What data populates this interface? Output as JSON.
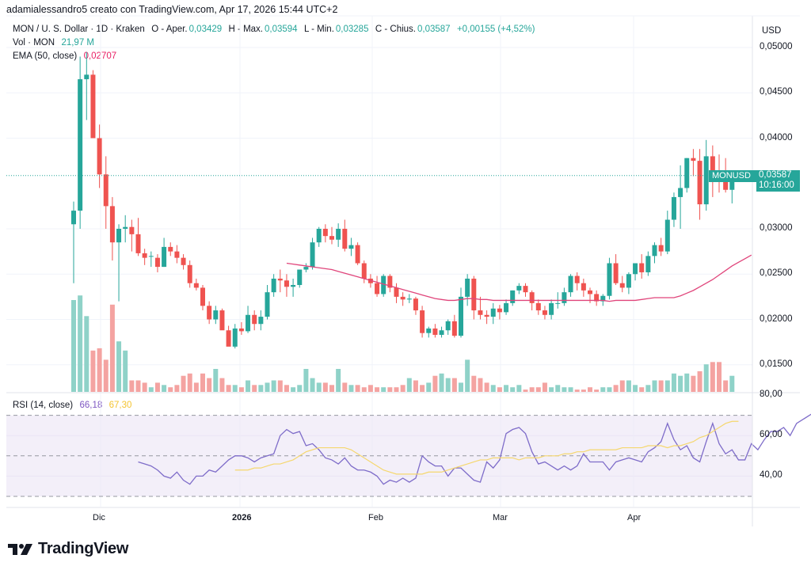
{
  "attribution": "adamialessandro5 creato con TradingView.com, Apr 17, 2026 15:44 UTC+2",
  "legend": {
    "symbol": "MON / U. S. Dollar · 1D · Kraken",
    "open_label": "O - Aper.",
    "open": "0,03429",
    "high_label": "H - Max.",
    "high": "0,03594",
    "low_label": "L - Min.",
    "low": "0,03285",
    "close_label": "C - Chius.",
    "close": "0,03587",
    "change": "+0,00155 (+4,52%)",
    "vol_label": "Vol · MON",
    "vol_value": "21,97 M",
    "ema_label": "EMA (50, close)",
    "ema_value": "0,02707",
    "rsi_label": "RSI (14, close)",
    "rsi_value": "66,18",
    "rsi_ma_value": "67,30"
  },
  "price_axis": {
    "currency": "USD",
    "ticks": [
      "0,05000",
      "0,04500",
      "0,04000",
      "0,03000",
      "0,02500",
      "0,02000",
      "0,01500"
    ]
  },
  "rsi_axis": {
    "ticks": [
      "80,00",
      "60,00",
      "40,00"
    ]
  },
  "time_axis": {
    "ticks": [
      "Dic",
      "2026",
      "Feb",
      "Mar",
      "Apr"
    ]
  },
  "price_tag": {
    "symbol": "MONUSD",
    "price": "0,03587",
    "countdown": "10:16:00"
  },
  "logo": {
    "text": "TradingView"
  },
  "colors": {
    "up": "#26a69a",
    "down": "#ef5350",
    "up_volume": "#8fd2c8",
    "down_volume": "#f4a3a1",
    "ema": "#e0457b",
    "rsi": "#7e6cc9",
    "rsi_ma": "#f5d76e",
    "rsi_band": "#ede7f6"
  },
  "chart_data": [
    {
      "type": "candlestick",
      "title": "MON / U. S. Dollar · 1D · Kraken",
      "ylabel": "USD",
      "ylim": [
        0.0125,
        0.0515
      ],
      "x_ticks": [
        "Dic",
        "2026",
        "Feb",
        "Mar",
        "Apr"
      ],
      "ohlc_fields": [
        "open",
        "high",
        "low",
        "close"
      ],
      "candles": [
        [
          0.0305,
          0.033,
          0.024,
          0.032
        ],
        [
          0.032,
          0.049,
          0.03,
          0.0465
        ],
        [
          0.0465,
          0.0495,
          0.042,
          0.047
        ],
        [
          0.047,
          0.0475,
          0.0425,
          0.04
        ],
        [
          0.04,
          0.0415,
          0.0345,
          0.036
        ],
        [
          0.036,
          0.038,
          0.03,
          0.0325
        ],
        [
          0.0325,
          0.0335,
          0.0265,
          0.0285
        ],
        [
          0.0285,
          0.0305,
          0.022,
          0.03
        ],
        [
          0.03,
          0.0315,
          0.0285,
          0.0302
        ],
        [
          0.0302,
          0.031,
          0.0275,
          0.0294
        ],
        [
          0.0294,
          0.0312,
          0.027,
          0.0273
        ],
        [
          0.0273,
          0.0278,
          0.026,
          0.0268
        ],
        [
          0.027,
          0.0275,
          0.0258,
          0.027
        ],
        [
          0.0268,
          0.0272,
          0.0252,
          0.0258
        ],
        [
          0.0258,
          0.029,
          0.0258,
          0.028
        ],
        [
          0.028,
          0.0285,
          0.027,
          0.0275
        ],
        [
          0.0275,
          0.0282,
          0.0262,
          0.0268
        ],
        [
          0.0268,
          0.0272,
          0.0255,
          0.026
        ],
        [
          0.026,
          0.0265,
          0.0235,
          0.024
        ],
        [
          0.024,
          0.0245,
          0.0232,
          0.0235
        ],
        [
          0.0235,
          0.0238,
          0.021,
          0.0215
        ],
        [
          0.0215,
          0.022,
          0.0195,
          0.02
        ],
        [
          0.02,
          0.0215,
          0.0195,
          0.021
        ],
        [
          0.021,
          0.0212,
          0.019,
          0.0188
        ],
        [
          0.0188,
          0.0193,
          0.018,
          0.017
        ],
        [
          0.017,
          0.0195,
          0.0168,
          0.019
        ],
        [
          0.019,
          0.0197,
          0.0183,
          0.0187
        ],
        [
          0.0187,
          0.0215,
          0.0185,
          0.0205
        ],
        [
          0.0205,
          0.021,
          0.0188,
          0.0195
        ],
        [
          0.0195,
          0.021,
          0.0188,
          0.0203
        ],
        [
          0.0203,
          0.0238,
          0.02,
          0.023
        ],
        [
          0.023,
          0.025,
          0.0225,
          0.0245
        ],
        [
          0.0245,
          0.0255,
          0.023,
          0.0243
        ],
        [
          0.0243,
          0.025,
          0.0225,
          0.0236
        ],
        [
          0.0236,
          0.0245,
          0.0225,
          0.0238
        ],
        [
          0.0238,
          0.0255,
          0.0235,
          0.0255
        ],
        [
          0.0255,
          0.0262,
          0.0252,
          0.0258
        ],
        [
          0.0258,
          0.029,
          0.0255,
          0.0285
        ],
        [
          0.0285,
          0.0302,
          0.028,
          0.03
        ],
        [
          0.03,
          0.0305,
          0.0285,
          0.0292
        ],
        [
          0.0292,
          0.0302,
          0.0283,
          0.0288
        ],
        [
          0.0288,
          0.0306,
          0.028,
          0.03
        ],
        [
          0.03,
          0.031,
          0.0275,
          0.0278
        ],
        [
          0.0278,
          0.029,
          0.027,
          0.0282
        ],
        [
          0.0282,
          0.0285,
          0.026,
          0.0262
        ],
        [
          0.0262,
          0.0265,
          0.024,
          0.0245
        ],
        [
          0.0245,
          0.025,
          0.0235,
          0.024
        ],
        [
          0.024,
          0.0248,
          0.0225,
          0.0228
        ],
        [
          0.0228,
          0.025,
          0.0225,
          0.0248
        ],
        [
          0.0248,
          0.025,
          0.023,
          0.0235
        ],
        [
          0.0235,
          0.024,
          0.0218,
          0.0225
        ],
        [
          0.0225,
          0.023,
          0.0215,
          0.0222
        ],
        [
          0.0222,
          0.0228,
          0.0218,
          0.0223
        ],
        [
          0.0223,
          0.0225,
          0.0205,
          0.021
        ],
        [
          0.021,
          0.0215,
          0.018,
          0.0185
        ],
        [
          0.0185,
          0.0192,
          0.018,
          0.019
        ],
        [
          0.019,
          0.0195,
          0.018,
          0.0183
        ],
        [
          0.0183,
          0.0192,
          0.018,
          0.0188
        ],
        [
          0.0188,
          0.02,
          0.0183,
          0.0198
        ],
        [
          0.0198,
          0.0205,
          0.018,
          0.0182
        ],
        [
          0.0182,
          0.0235,
          0.018,
          0.0225
        ],
        [
          0.0225,
          0.025,
          0.0215,
          0.0245
        ],
        [
          0.0245,
          0.0248,
          0.02,
          0.021
        ],
        [
          0.021,
          0.0225,
          0.02,
          0.0205
        ],
        [
          0.0205,
          0.021,
          0.0195,
          0.0203
        ],
        [
          0.0203,
          0.0218,
          0.0195,
          0.0212
        ],
        [
          0.0212,
          0.0216,
          0.02,
          0.0208
        ],
        [
          0.0208,
          0.0222,
          0.0205,
          0.0218
        ],
        [
          0.0218,
          0.0232,
          0.0215,
          0.0232
        ],
        [
          0.0232,
          0.024,
          0.0228,
          0.0237
        ],
        [
          0.0237,
          0.024,
          0.0225,
          0.023
        ],
        [
          0.023,
          0.0232,
          0.021,
          0.0218
        ],
        [
          0.0218,
          0.0222,
          0.0205,
          0.021
        ],
        [
          0.021,
          0.0215,
          0.02,
          0.0205
        ],
        [
          0.0205,
          0.0222,
          0.02,
          0.0218
        ],
        [
          0.0218,
          0.023,
          0.0212,
          0.0218
        ],
        [
          0.0218,
          0.0235,
          0.0215,
          0.023
        ],
        [
          0.023,
          0.025,
          0.0225,
          0.0248
        ],
        [
          0.0248,
          0.0252,
          0.0232,
          0.024
        ],
        [
          0.024,
          0.0245,
          0.0225,
          0.0232
        ],
        [
          0.0232,
          0.0235,
          0.0218,
          0.0228
        ],
        [
          0.0228,
          0.0232,
          0.0215,
          0.022
        ],
        [
          0.022,
          0.0228,
          0.0215,
          0.0226
        ],
        [
          0.0226,
          0.0268,
          0.0222,
          0.0262
        ],
        [
          0.0262,
          0.0272,
          0.0238,
          0.024
        ],
        [
          0.024,
          0.0248,
          0.023,
          0.0235
        ],
        [
          0.0235,
          0.0252,
          0.0228,
          0.025
        ],
        [
          0.025,
          0.0262,
          0.0243,
          0.0262
        ],
        [
          0.0262,
          0.0272,
          0.0245,
          0.0252
        ],
        [
          0.0252,
          0.0275,
          0.0248,
          0.027
        ],
        [
          0.027,
          0.0285,
          0.0262,
          0.0282
        ],
        [
          0.0282,
          0.029,
          0.027,
          0.0275
        ],
        [
          0.0275,
          0.032,
          0.0272,
          0.031
        ],
        [
          0.031,
          0.034,
          0.0302,
          0.0335
        ],
        [
          0.0335,
          0.037,
          0.03,
          0.0345
        ],
        [
          0.0345,
          0.0378,
          0.034,
          0.0378
        ],
        [
          0.0378,
          0.0388,
          0.0358,
          0.0375
        ],
        [
          0.0375,
          0.0388,
          0.031,
          0.0327
        ],
        [
          0.0327,
          0.0398,
          0.032,
          0.038
        ],
        [
          0.038,
          0.0392,
          0.0335,
          0.036
        ],
        [
          0.036,
          0.0382,
          0.034,
          0.0352
        ],
        [
          0.0352,
          0.0378,
          0.034,
          0.0343
        ],
        [
          0.0343,
          0.0359,
          0.0328,
          0.0359
        ]
      ],
      "volume": [
        0.4,
        0.42,
        0.33,
        0.18,
        0.19,
        0.14,
        0.38,
        0.22,
        0.18,
        0.05,
        0.05,
        0.04,
        0.02,
        0.04,
        0.03,
        0.02,
        0.03,
        0.07,
        0.08,
        0.04,
        0.08,
        0.06,
        0.1,
        0.06,
        0.03,
        0.03,
        0.02,
        0.05,
        0.03,
        0.03,
        0.04,
        0.05,
        0.05,
        0.03,
        0.02,
        0.03,
        0.1,
        0.06,
        0.04,
        0.04,
        0.03,
        0.1,
        0.04,
        0.03,
        0.03,
        0.02,
        0.03,
        0.02,
        0.02,
        0.02,
        0.02,
        0.03,
        0.06,
        0.05,
        0.03,
        0.04,
        0.07,
        0.08,
        0.06,
        0.06,
        0.04,
        0.14,
        0.07,
        0.06,
        0.04,
        0.03,
        0.02,
        0.03,
        0.02,
        0.03,
        0.01,
        0.02,
        0.02,
        0.04,
        0.02,
        0.03,
        0.02,
        0.02,
        0.01,
        0.01,
        0.02,
        0.01,
        0.02,
        0.02,
        0.03,
        0.05,
        0.05,
        0.03,
        0.02,
        0.03,
        0.05,
        0.05,
        0.05,
        0.08,
        0.07,
        0.08,
        0.07,
        0.09,
        0.12,
        0.13,
        0.13,
        0.05,
        0.07,
        0.07,
        0.05,
        0.05,
        0.04
      ],
      "ema50": {
        "start_index": 33,
        "values": [
          0.0262,
          0.0261,
          0.026,
          0.0259,
          0.0258,
          0.0257,
          0.0256,
          0.0255,
          0.0253,
          0.0251,
          0.0249,
          0.0247,
          0.0245,
          0.0243,
          0.0241,
          0.0239,
          0.0237,
          0.0235,
          0.0233,
          0.0231,
          0.0229,
          0.0227,
          0.0225,
          0.0223,
          0.0222,
          0.0221,
          0.0221,
          0.0222,
          0.0223,
          0.0223,
          0.0222,
          0.0222,
          0.0221,
          0.0221,
          0.0221,
          0.0221,
          0.0221,
          0.0221,
          0.0221,
          0.0221,
          0.0221,
          0.0221,
          0.0221,
          0.0221,
          0.0221,
          0.0221,
          0.0221,
          0.0221,
          0.0221,
          0.0221,
          0.022,
          0.0221,
          0.0221,
          0.0221,
          0.0221,
          0.0222,
          0.0223,
          0.0224,
          0.0224,
          0.0224,
          0.0224,
          0.0226,
          0.0229,
          0.0232,
          0.0236,
          0.024,
          0.0244,
          0.0249,
          0.0254,
          0.0259,
          0.0263,
          0.0267,
          0.0271
        ]
      },
      "last_price": 0.03587
    },
    {
      "type": "line",
      "title": "RSI (14, close)",
      "ylim": [
        25,
        82
      ],
      "bands": {
        "upper": 70,
        "middle": 50,
        "lower": 30
      },
      "y_ticks": [
        "80,00",
        "60,00",
        "40,00"
      ],
      "series": [
        {
          "name": "RSI",
          "start_index": 10,
          "values": [
            47,
            46,
            45,
            43,
            40,
            39,
            42,
            38,
            36,
            40,
            40,
            43,
            42,
            45,
            48,
            50,
            50,
            49,
            47,
            49,
            50,
            51,
            60,
            63,
            61,
            62,
            55,
            56,
            53,
            49,
            48,
            46,
            49,
            45,
            43,
            43,
            42,
            40,
            36,
            38,
            37,
            39,
            37,
            39,
            50,
            47,
            45,
            45,
            40,
            44,
            44,
            41,
            38,
            37,
            47,
            44,
            48,
            61,
            63,
            64,
            61,
            52,
            46,
            47,
            45,
            43,
            45,
            43,
            45,
            51,
            47,
            47,
            47,
            43,
            47,
            48,
            49,
            48,
            47,
            52,
            54,
            57,
            66,
            58,
            53,
            55,
            49,
            47,
            57,
            66,
            56,
            51,
            53,
            48,
            48,
            56,
            53,
            58,
            62,
            62,
            64,
            60,
            66,
            68,
            70,
            72,
            60,
            66,
            61,
            61,
            59,
            61
          ]
        },
        {
          "name": "RSI MA",
          "start_index": 25,
          "values": [
            43,
            43,
            43,
            44,
            44,
            45,
            46,
            46,
            47,
            48,
            50,
            52,
            53,
            54,
            54,
            54,
            54,
            54,
            53,
            51,
            49,
            47,
            45,
            43,
            42,
            41,
            41,
            41,
            41,
            41,
            42,
            42,
            42,
            43,
            44,
            45,
            46,
            47,
            48,
            48,
            49,
            49,
            49,
            49,
            48,
            49,
            49,
            49,
            50,
            50,
            50,
            51,
            51,
            52,
            52,
            53,
            53,
            53,
            53,
            53,
            54,
            54,
            54,
            54,
            55,
            55,
            55,
            54,
            55,
            55,
            56,
            57,
            59,
            60,
            62,
            64,
            66,
            67,
            67
          ]
        }
      ]
    }
  ]
}
